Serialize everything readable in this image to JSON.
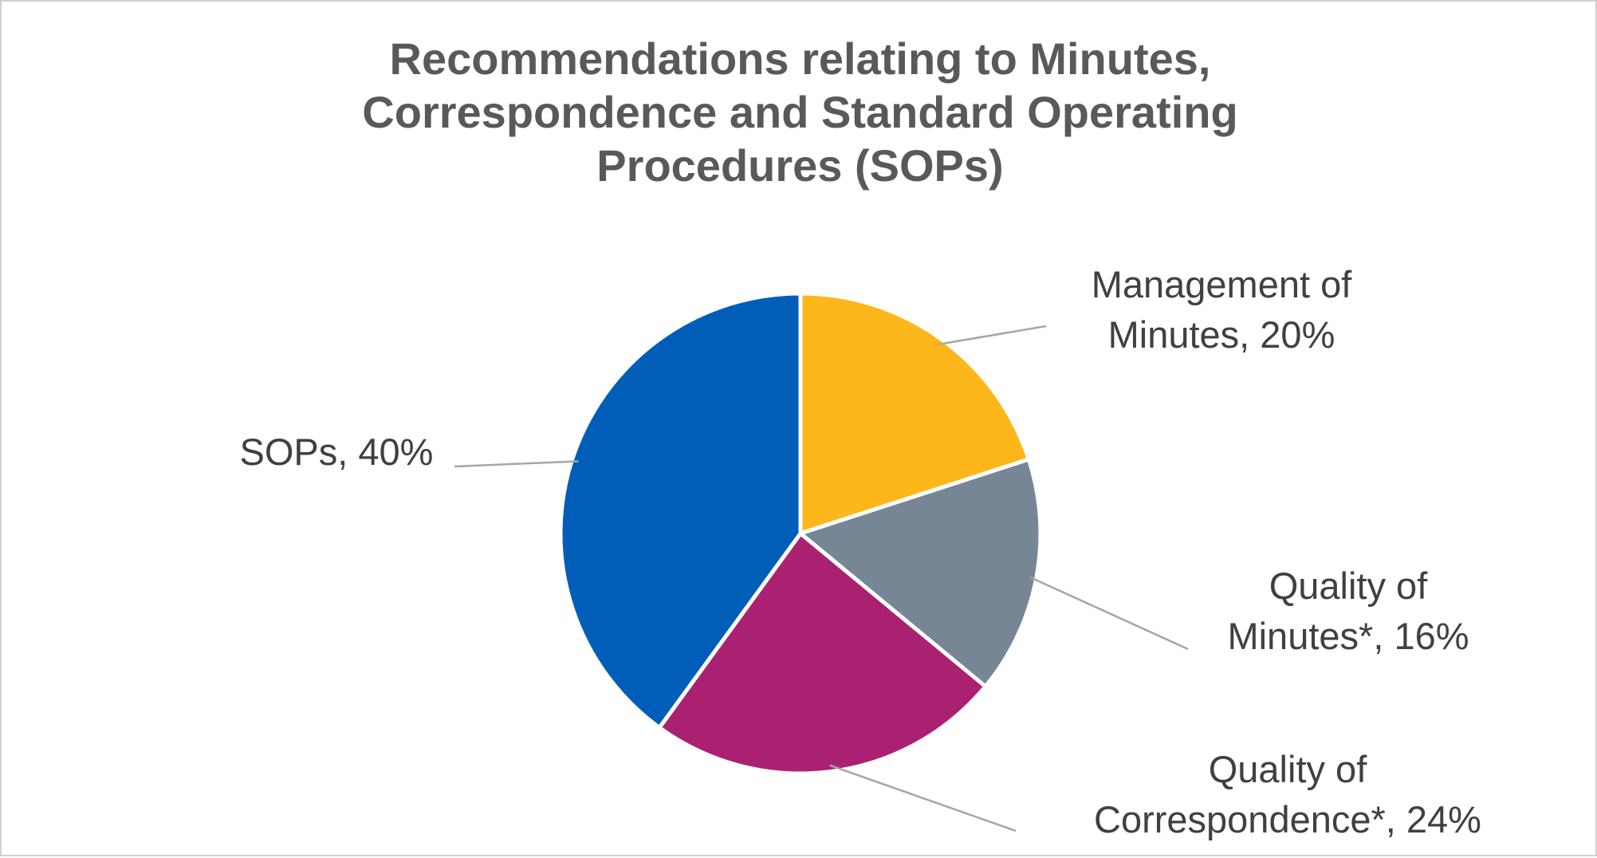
{
  "chart_data": {
    "type": "pie",
    "title_lines": [
      "Recommendations relating to Minutes,",
      "Correspondence and Standard Operating",
      "Procedures (SOPs)"
    ],
    "title": "Recommendations relating to Minutes, Correspondence and Standard Operating Procedures (SOPs)",
    "slices": [
      {
        "name": "Management of Minutes",
        "value": 20,
        "color": "#FDB71A",
        "label_lines": [
          "Management of",
          "Minutes, 20%"
        ]
      },
      {
        "name": "Quality of Minutes*",
        "value": 16,
        "color": "#768694",
        "label_lines": [
          "Quality of",
          "Minutes*, 16%"
        ]
      },
      {
        "name": "Quality of Correspondence*",
        "value": 24,
        "color": "#AB2171",
        "label_lines": [
          "Quality of",
          "Correspondence*, 24%"
        ]
      },
      {
        "name": "SOPs",
        "value": 40,
        "color": "#005EB8",
        "label_lines": [
          "SOPs, 40%"
        ]
      }
    ],
    "unit": "%",
    "legend": "none",
    "data_labels": "outside-with-leader-lines"
  }
}
